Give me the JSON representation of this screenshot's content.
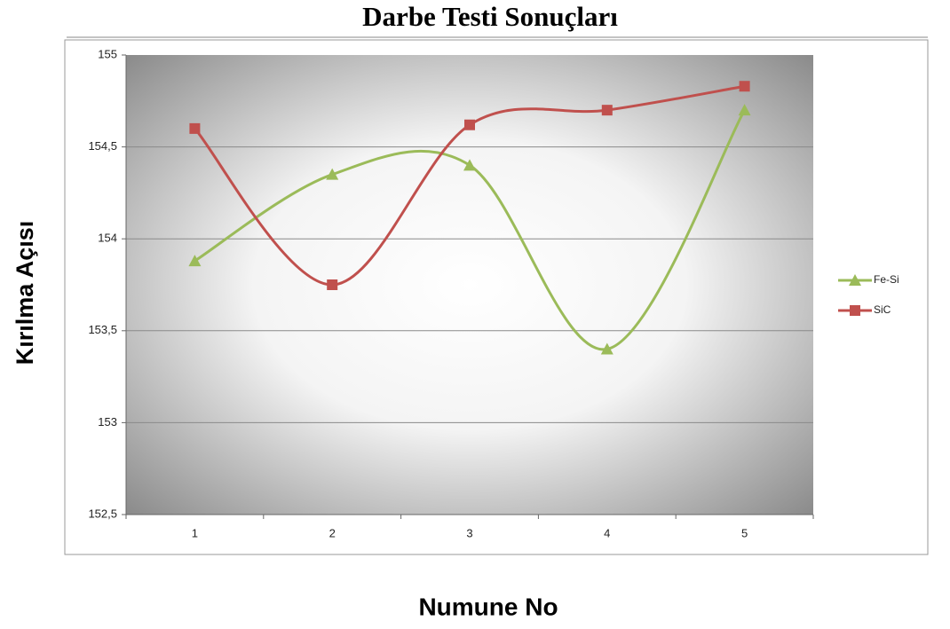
{
  "chart_data": {
    "type": "line",
    "title": "Darbe Testi Sonuçları",
    "x_label": "Numune No",
    "y_label": "Kırılma Açısı",
    "categories": [
      "1",
      "2",
      "3",
      "4",
      "5"
    ],
    "series": [
      {
        "name": "Fe-Si",
        "color": "#9bbb59",
        "marker": "triangle",
        "values": [
          153.88,
          154.35,
          154.4,
          153.4,
          154.7
        ]
      },
      {
        "name": "SiC",
        "color": "#c0504d",
        "marker": "square",
        "values": [
          154.6,
          153.75,
          154.62,
          154.7,
          154.83
        ]
      }
    ],
    "ylim": [
      152.5,
      155
    ],
    "yticks": [
      {
        "value": 152.5,
        "label": "152,5"
      },
      153,
      {
        "value": 153.5,
        "label": "153,5"
      },
      154,
      {
        "value": 154.5,
        "label": "154,5"
      },
      155
    ],
    "grid": true,
    "legend": "right",
    "smooth": true
  }
}
